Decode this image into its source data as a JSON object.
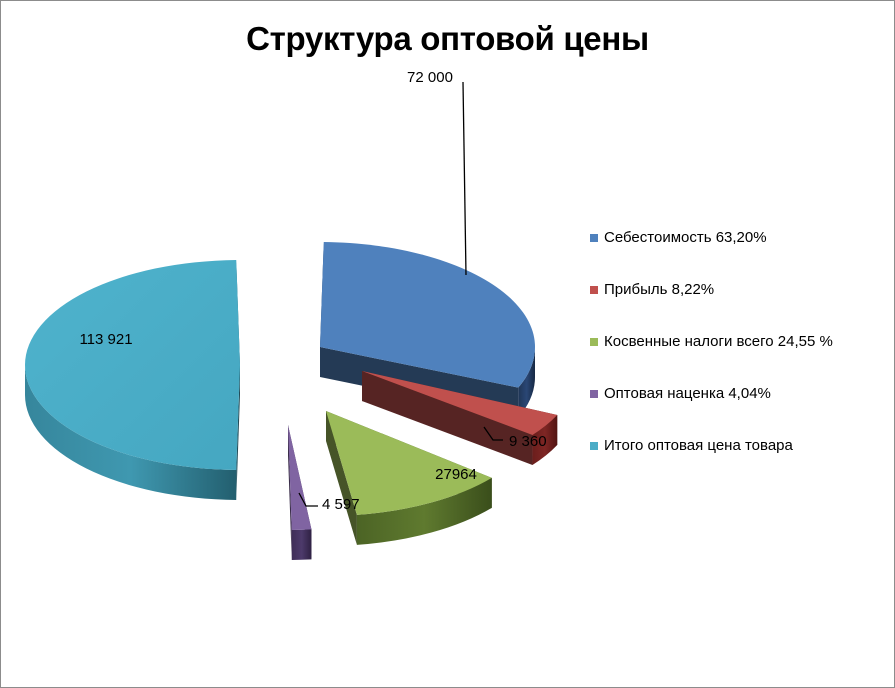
{
  "chart_data": {
    "type": "pie",
    "title": "Структура оптовой цены",
    "legend_position": "right",
    "series": [
      {
        "values": [
          72000,
          9360,
          27964,
          4597,
          113921
        ],
        "data_labels": [
          "72 000",
          "9 360",
          "27964",
          "4 597",
          "113 921"
        ]
      }
    ],
    "categories": [
      "Себестоимость 63,20%",
      "Прибыль 8,22%",
      "Косвенные налоги всего 24,55 %",
      "Оптовая  наценка 4,04%",
      "Итого оптовая цена товара"
    ],
    "colors": [
      "#4f81bd",
      "#c0504d",
      "#9bbb59",
      "#8064a2",
      "#4bacc6"
    ]
  }
}
